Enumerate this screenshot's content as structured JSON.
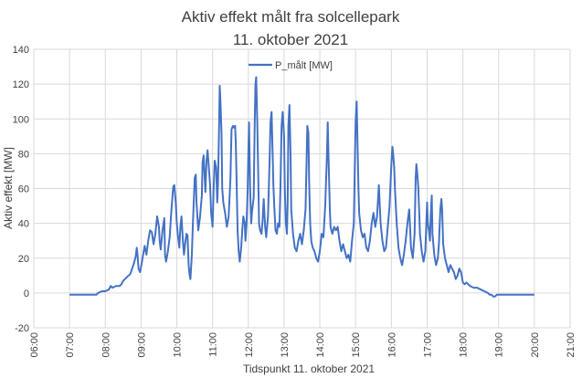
{
  "chart_data": {
    "type": "line",
    "title_line1": "Aktiv effekt målt fra solcellepark",
    "title_line2": "11. oktober 2021",
    "xlabel": "Tidspunkt 11. oktober 2021",
    "ylabel": "Aktiv effekt [MW]",
    "xlim": [
      6,
      21
    ],
    "ylim": [
      -20,
      140
    ],
    "x_ticks": [
      6,
      7,
      8,
      9,
      10,
      11,
      12,
      13,
      14,
      15,
      16,
      17,
      18,
      19,
      20,
      21
    ],
    "x_tick_labels": [
      "06:00",
      "07:00",
      "08:00",
      "09:00",
      "10:00",
      "11:00",
      "12:00",
      "13:00",
      "14:00",
      "15:00",
      "16:00",
      "17:00",
      "18:00",
      "19:00",
      "20:00",
      "21:00"
    ],
    "y_ticks": [
      -20,
      0,
      20,
      40,
      60,
      80,
      100,
      120,
      140
    ],
    "y_tick_labels": [
      "-20",
      "0",
      "20",
      "40",
      "60",
      "80",
      "100",
      "120",
      "140"
    ],
    "grid": true,
    "legend_position": "top-center",
    "series": [
      {
        "name": "P_målt [MW]",
        "color": "#4472c4",
        "points": [
          [
            7.0,
            -1
          ],
          [
            7.3,
            -1
          ],
          [
            7.5,
            -1
          ],
          [
            7.75,
            -1
          ],
          [
            7.8,
            0
          ],
          [
            7.9,
            1
          ],
          [
            8.0,
            1
          ],
          [
            8.1,
            2
          ],
          [
            8.15,
            4
          ],
          [
            8.2,
            3
          ],
          [
            8.3,
            4
          ],
          [
            8.4,
            4
          ],
          [
            8.45,
            5
          ],
          [
            8.5,
            7
          ],
          [
            8.6,
            9
          ],
          [
            8.7,
            11
          ],
          [
            8.75,
            14
          ],
          [
            8.8,
            17
          ],
          [
            8.85,
            21
          ],
          [
            8.88,
            26
          ],
          [
            8.9,
            22
          ],
          [
            8.93,
            14
          ],
          [
            8.97,
            12
          ],
          [
            9.0,
            15
          ],
          [
            9.05,
            21
          ],
          [
            9.1,
            27
          ],
          [
            9.15,
            22
          ],
          [
            9.2,
            30
          ],
          [
            9.25,
            36
          ],
          [
            9.3,
            35
          ],
          [
            9.35,
            28
          ],
          [
            9.4,
            34
          ],
          [
            9.45,
            44
          ],
          [
            9.5,
            38
          ],
          [
            9.52,
            30
          ],
          [
            9.55,
            25
          ],
          [
            9.6,
            36
          ],
          [
            9.65,
            43
          ],
          [
            9.67,
            22
          ],
          [
            9.7,
            18
          ],
          [
            9.75,
            24
          ],
          [
            9.8,
            32
          ],
          [
            9.85,
            48
          ],
          [
            9.9,
            61
          ],
          [
            9.93,
            62
          ],
          [
            9.97,
            52
          ],
          [
            10.0,
            40
          ],
          [
            10.03,
            33
          ],
          [
            10.07,
            26
          ],
          [
            10.1,
            38
          ],
          [
            10.13,
            44
          ],
          [
            10.17,
            30
          ],
          [
            10.2,
            22
          ],
          [
            10.23,
            28
          ],
          [
            10.27,
            34
          ],
          [
            10.3,
            33
          ],
          [
            10.33,
            16
          ],
          [
            10.36,
            10
          ],
          [
            10.38,
            8
          ],
          [
            10.42,
            22
          ],
          [
            10.45,
            40
          ],
          [
            10.5,
            66
          ],
          [
            10.53,
            68
          ],
          [
            10.55,
            52
          ],
          [
            10.6,
            36
          ],
          [
            10.65,
            44
          ],
          [
            10.7,
            56
          ],
          [
            10.72,
            75
          ],
          [
            10.75,
            79
          ],
          [
            10.78,
            66
          ],
          [
            10.8,
            58
          ],
          [
            10.83,
            76
          ],
          [
            10.86,
            82
          ],
          [
            10.9,
            71
          ],
          [
            10.93,
            62
          ],
          [
            10.96,
            46
          ],
          [
            11.0,
            38
          ],
          [
            11.03,
            60
          ],
          [
            11.06,
            76
          ],
          [
            11.1,
            72
          ],
          [
            11.13,
            52
          ],
          [
            11.15,
            62
          ],
          [
            11.18,
            93
          ],
          [
            11.2,
            119
          ],
          [
            11.22,
            110
          ],
          [
            11.25,
            92
          ],
          [
            11.27,
            60
          ],
          [
            11.3,
            52
          ],
          [
            11.35,
            46
          ],
          [
            11.4,
            38
          ],
          [
            11.45,
            44
          ],
          [
            11.5,
            66
          ],
          [
            11.53,
            94
          ],
          [
            11.57,
            96
          ],
          [
            11.6,
            95
          ],
          [
            11.63,
            96
          ],
          [
            11.65,
            86
          ],
          [
            11.68,
            56
          ],
          [
            11.7,
            36
          ],
          [
            11.73,
            24
          ],
          [
            11.76,
            18
          ],
          [
            11.8,
            26
          ],
          [
            11.83,
            36
          ],
          [
            11.86,
            44
          ],
          [
            11.9,
            40
          ],
          [
            11.92,
            30
          ],
          [
            11.95,
            40
          ],
          [
            11.98,
            58
          ],
          [
            12.0,
            80
          ],
          [
            12.02,
            98
          ],
          [
            12.05,
            60
          ],
          [
            12.08,
            40
          ],
          [
            12.1,
            46
          ],
          [
            12.15,
            55
          ],
          [
            12.18,
            100
          ],
          [
            12.2,
            120
          ],
          [
            12.22,
            124
          ],
          [
            12.25,
            98
          ],
          [
            12.28,
            64
          ],
          [
            12.3,
            40
          ],
          [
            12.33,
            36
          ],
          [
            12.37,
            34
          ],
          [
            12.4,
            42
          ],
          [
            12.43,
            54
          ],
          [
            12.47,
            38
          ],
          [
            12.5,
            32
          ],
          [
            12.55,
            44
          ],
          [
            12.6,
            80
          ],
          [
            12.62,
            98
          ],
          [
            12.65,
            104
          ],
          [
            12.68,
            80
          ],
          [
            12.7,
            62
          ],
          [
            12.73,
            48
          ],
          [
            12.76,
            36
          ],
          [
            12.8,
            34
          ],
          [
            12.83,
            40
          ],
          [
            12.87,
            38
          ],
          [
            12.9,
            62
          ],
          [
            12.93,
            96
          ],
          [
            12.96,
            104
          ],
          [
            13.0,
            90
          ],
          [
            13.02,
            60
          ],
          [
            13.05,
            40
          ],
          [
            13.08,
            34
          ],
          [
            13.1,
            52
          ],
          [
            13.12,
            96
          ],
          [
            13.15,
            108
          ],
          [
            13.18,
            80
          ],
          [
            13.2,
            48
          ],
          [
            13.25,
            34
          ],
          [
            13.3,
            26
          ],
          [
            13.35,
            24
          ],
          [
            13.4,
            30
          ],
          [
            13.45,
            34
          ],
          [
            13.5,
            28
          ],
          [
            13.55,
            36
          ],
          [
            13.6,
            48
          ],
          [
            13.65,
            96
          ],
          [
            13.68,
            92
          ],
          [
            13.7,
            64
          ],
          [
            13.73,
            40
          ],
          [
            13.76,
            30
          ],
          [
            13.8,
            26
          ],
          [
            13.85,
            24
          ],
          [
            13.9,
            20
          ],
          [
            13.95,
            18
          ],
          [
            14.0,
            24
          ],
          [
            14.05,
            34
          ],
          [
            14.1,
            32
          ],
          [
            14.15,
            50
          ],
          [
            14.2,
            80
          ],
          [
            14.22,
            98
          ],
          [
            14.25,
            72
          ],
          [
            14.28,
            48
          ],
          [
            14.3,
            38
          ],
          [
            14.35,
            34
          ],
          [
            14.4,
            38
          ],
          [
            14.45,
            36
          ],
          [
            14.5,
            38
          ],
          [
            14.55,
            30
          ],
          [
            14.6,
            24
          ],
          [
            14.65,
            28
          ],
          [
            14.7,
            24
          ],
          [
            14.75,
            20
          ],
          [
            14.8,
            22
          ],
          [
            14.85,
            18
          ],
          [
            14.9,
            30
          ],
          [
            14.95,
            40
          ],
          [
            15.0,
            98
          ],
          [
            15.03,
            110
          ],
          [
            15.05,
            90
          ],
          [
            15.08,
            60
          ],
          [
            15.1,
            46
          ],
          [
            15.15,
            36
          ],
          [
            15.2,
            32
          ],
          [
            15.25,
            34
          ],
          [
            15.3,
            26
          ],
          [
            15.35,
            24
          ],
          [
            15.4,
            30
          ],
          [
            15.45,
            40
          ],
          [
            15.5,
            46
          ],
          [
            15.55,
            38
          ],
          [
            15.6,
            44
          ],
          [
            15.65,
            62
          ],
          [
            15.7,
            40
          ],
          [
            15.75,
            30
          ],
          [
            15.8,
            24
          ],
          [
            15.85,
            26
          ],
          [
            15.9,
            38
          ],
          [
            15.95,
            50
          ],
          [
            16.0,
            74
          ],
          [
            16.03,
            84
          ],
          [
            16.05,
            80
          ],
          [
            16.08,
            72
          ],
          [
            16.1,
            60
          ],
          [
            16.15,
            40
          ],
          [
            16.2,
            26
          ],
          [
            16.25,
            20
          ],
          [
            16.3,
            16
          ],
          [
            16.35,
            22
          ],
          [
            16.4,
            30
          ],
          [
            16.45,
            40
          ],
          [
            16.5,
            48
          ],
          [
            16.55,
            26
          ],
          [
            16.6,
            20
          ],
          [
            16.65,
            34
          ],
          [
            16.68,
            66
          ],
          [
            16.7,
            74
          ],
          [
            16.72,
            70
          ],
          [
            16.75,
            62
          ],
          [
            16.78,
            46
          ],
          [
            16.8,
            34
          ],
          [
            16.85,
            24
          ],
          [
            16.9,
            18
          ],
          [
            16.95,
            24
          ],
          [
            17.0,
            52
          ],
          [
            17.02,
            40
          ],
          [
            17.05,
            36
          ],
          [
            17.08,
            30
          ],
          [
            17.1,
            44
          ],
          [
            17.13,
            56
          ],
          [
            17.15,
            34
          ],
          [
            17.2,
            22
          ],
          [
            17.25,
            16
          ],
          [
            17.3,
            20
          ],
          [
            17.33,
            28
          ],
          [
            17.37,
            48
          ],
          [
            17.4,
            54
          ],
          [
            17.42,
            48
          ],
          [
            17.45,
            28
          ],
          [
            17.5,
            20
          ],
          [
            17.55,
            16
          ],
          [
            17.6,
            12
          ],
          [
            17.65,
            16
          ],
          [
            17.7,
            14
          ],
          [
            17.75,
            12
          ],
          [
            17.8,
            8
          ],
          [
            17.85,
            10
          ],
          [
            17.9,
            14
          ],
          [
            17.95,
            12
          ],
          [
            18.0,
            6
          ],
          [
            18.05,
            5
          ],
          [
            18.1,
            6
          ],
          [
            18.2,
            4
          ],
          [
            18.3,
            3
          ],
          [
            18.4,
            3
          ],
          [
            18.5,
            2
          ],
          [
            18.6,
            1
          ],
          [
            18.7,
            0
          ],
          [
            18.75,
            -1
          ],
          [
            18.8,
            -1
          ],
          [
            18.85,
            -2
          ],
          [
            18.9,
            -2
          ],
          [
            18.95,
            -1
          ],
          [
            19.0,
            -1
          ],
          [
            19.1,
            -1
          ],
          [
            19.3,
            -1
          ],
          [
            19.5,
            -1
          ],
          [
            19.7,
            -1
          ],
          [
            19.9,
            -1
          ],
          [
            20.0,
            -1
          ]
        ]
      }
    ]
  }
}
